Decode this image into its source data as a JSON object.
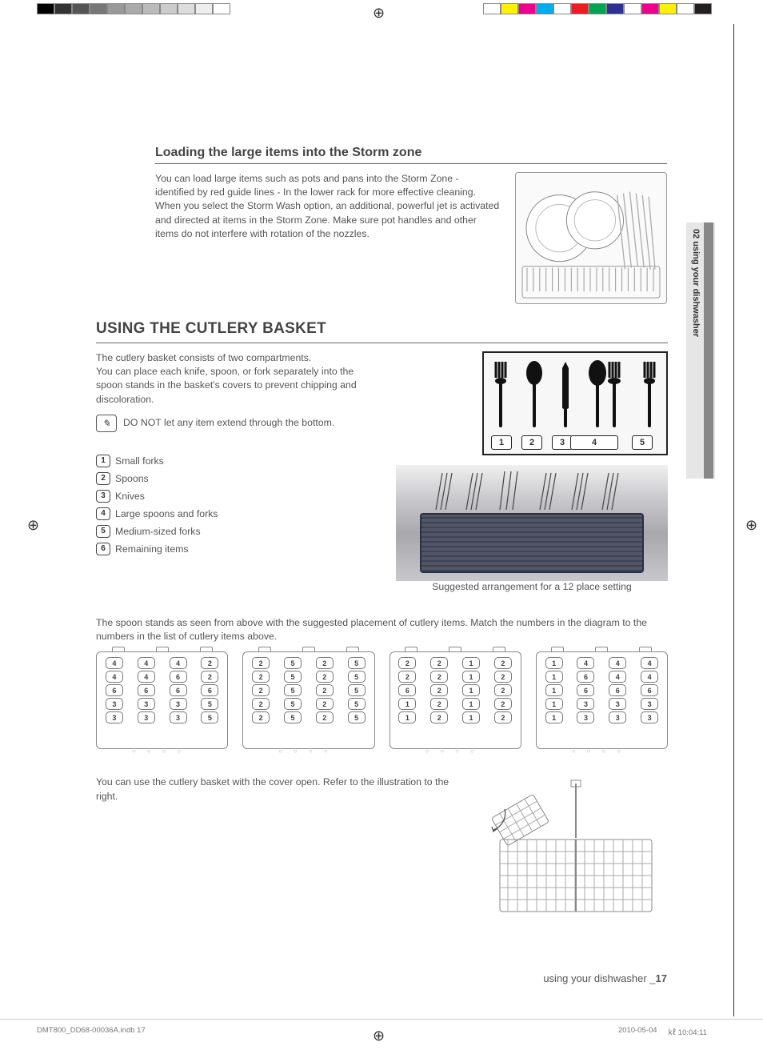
{
  "colorbar": {
    "left": [
      "#000000",
      "#333333",
      "#555555",
      "#777777",
      "#999999",
      "#aaaaaa",
      "#bbbbbb",
      "#cccccc",
      "#dddddd",
      "#eeeeee",
      "#ffffff"
    ],
    "right": [
      "#ffffff",
      "#fff200",
      "#ec008c",
      "#00aeef",
      "#ffffff",
      "#ed1c24",
      "#00a651",
      "#2e3192",
      "#ffffff",
      "#ec008c",
      "#fff200",
      "#ffffff",
      "#231f20"
    ]
  },
  "side_tab": "02 using your dishwasher",
  "section1": {
    "title": "Loading the large items into the Storm zone",
    "body": "You can load large items such as pots and pans into the Storm Zone - identified by red guide lines - In the lower rack for more effective cleaning. When you select the Storm Wash option, an additional, powerful jet is activated and directed at items in the Storm Zone. Make sure pot handles and other items do not interfere with rotation of the nozzles."
  },
  "section2": {
    "title": "USING THE CUTLERY BASKET",
    "intro1": "The cutlery basket consists of two compartments.",
    "intro2": "You can place each knife, spoon, or fork separately into the spoon stands in the basket's covers to prevent chipping and discoloration.",
    "note": "DO NOT let any item extend through the bottom.",
    "legend": [
      {
        "n": "1",
        "label": "Small forks"
      },
      {
        "n": "2",
        "label": "Spoons"
      },
      {
        "n": "3",
        "label": "Knives"
      },
      {
        "n": "4",
        "label": "Large spoons and forks"
      },
      {
        "n": "5",
        "label": "Medium-sized forks"
      },
      {
        "n": "6",
        "label": "Remaining items"
      }
    ],
    "icon_labels": [
      "1",
      "2",
      "3",
      "4",
      "5"
    ],
    "icon_label_widths": [
      26,
      26,
      26,
      60,
      26
    ],
    "caption": "Suggested arrangement for a 12 place setting",
    "spoon_text": "The spoon stands as seen from above with the suggested placement of cutlery items. Match the numbers in the diagram to the numbers in the list of cutlery items above.",
    "stands": [
      [
        [
          "4",
          "4",
          "6",
          "3",
          "3"
        ],
        [
          "4",
          "4",
          "6",
          "3",
          "3"
        ],
        [
          "4",
          "6",
          "6",
          "3",
          "3"
        ],
        [
          "2",
          "2",
          "6",
          "5",
          "5"
        ]
      ],
      [
        [
          "2",
          "2",
          "2",
          "2",
          "2"
        ],
        [
          "5",
          "5",
          "5",
          "5",
          "5"
        ],
        [
          "2",
          "2",
          "2",
          "2",
          "2"
        ],
        [
          "5",
          "5",
          "5",
          "5",
          "5"
        ]
      ],
      [
        [
          "2",
          "2",
          "6",
          "1",
          "1"
        ],
        [
          "2",
          "2",
          "2",
          "2",
          "2"
        ],
        [
          "1",
          "1",
          "1",
          "1",
          "1"
        ],
        [
          "2",
          "2",
          "2",
          "2",
          "2"
        ]
      ],
      [
        [
          "1",
          "1",
          "1",
          "1",
          "1"
        ],
        [
          "4",
          "6",
          "6",
          "3",
          "3"
        ],
        [
          "4",
          "4",
          "6",
          "3",
          "3"
        ],
        [
          "4",
          "4",
          "6",
          "3",
          "3"
        ]
      ]
    ],
    "cover_text": "You can use the cutlery basket with the cover open. Refer to the illustration to the right."
  },
  "footer": {
    "label": "using your dishwasher _",
    "page": "17"
  },
  "imprint": {
    "file": "DMT800_DD68-00036A.indb   17",
    "date": "2010-05-04",
    "time": "㎘ 10:04:11"
  }
}
